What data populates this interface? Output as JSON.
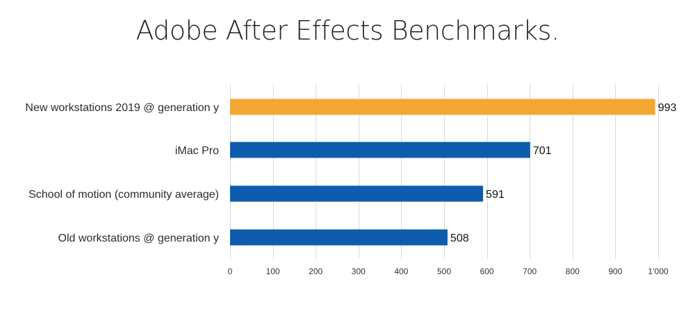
{
  "chart_data": {
    "type": "bar",
    "orientation": "horizontal",
    "title": "Adobe After Effects Benchmarks.",
    "xlabel": "",
    "ylabel": "",
    "categories": [
      "New workstations 2019 @ generation y",
      "iMac Pro",
      "School of motion (community average)",
      "Old workstations @ generation y"
    ],
    "values": [
      993,
      701,
      591,
      508
    ],
    "value_labels": [
      "993",
      "701",
      "591",
      "508"
    ],
    "bar_colors": [
      "#F5A733",
      "#0E5CAD",
      "#0E5CAD",
      "#0E5CAD"
    ],
    "xlim": [
      0,
      1000
    ],
    "x_ticks": [
      0,
      100,
      200,
      300,
      400,
      500,
      600,
      700,
      800,
      900,
      1000
    ],
    "x_tick_labels": [
      "0",
      "100",
      "200",
      "300",
      "400",
      "500",
      "600",
      "700",
      "800",
      "900",
      "1’000"
    ],
    "grid": "vertical",
    "legend": "none"
  }
}
